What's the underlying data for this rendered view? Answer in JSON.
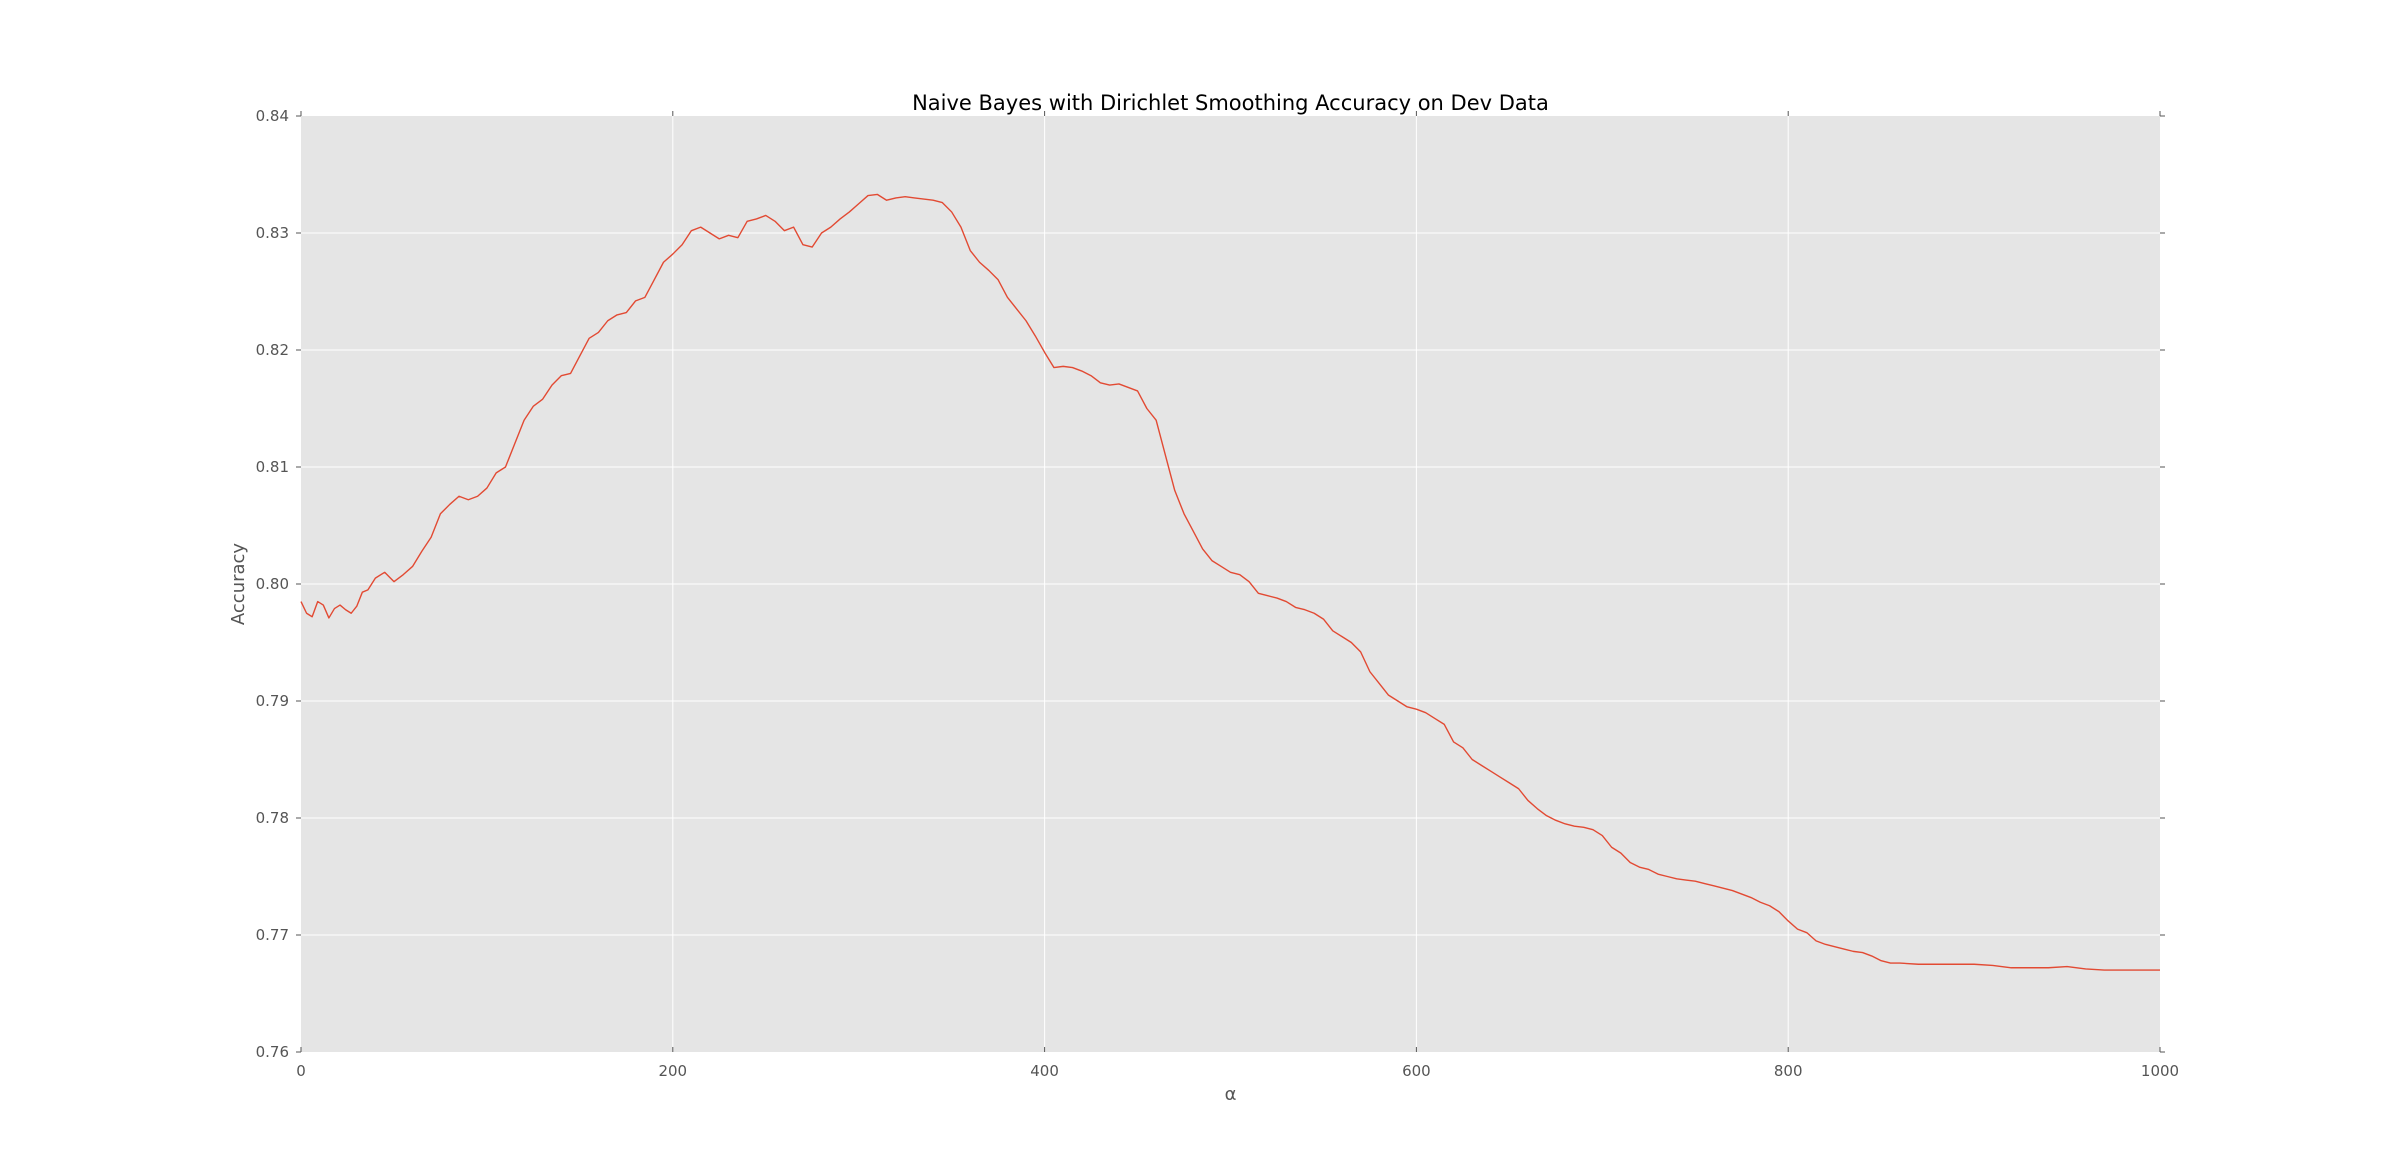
{
  "chart_data": {
    "type": "line",
    "title": "Naive Bayes with Dirichlet Smoothing Accuracy on Dev Data",
    "xlabel": "α",
    "ylabel": "Accuracy",
    "xlim": [
      0,
      1000
    ],
    "ylim": [
      0.76,
      0.84
    ],
    "xticks": [
      0,
      200,
      400,
      600,
      800,
      1000
    ],
    "xtick_labels": [
      "0",
      "200",
      "400",
      "600",
      "800",
      "1000"
    ],
    "yticks": [
      0.76,
      0.77,
      0.78,
      0.79,
      0.8,
      0.81,
      0.82,
      0.83,
      0.84
    ],
    "ytick_labels": [
      "0.76",
      "0.77",
      "0.78",
      "0.79",
      "0.80",
      "0.81",
      "0.82",
      "0.83",
      "0.84"
    ],
    "grid": true,
    "legend": "none",
    "style": {
      "background_color": "#e5e5e5",
      "grid_color": "#ffffff",
      "line_color": "#e24a33"
    },
    "series": [
      {
        "x": [
          0,
          3,
          6,
          9,
          12,
          15,
          18,
          21,
          24,
          27,
          30,
          33,
          36,
          40,
          45,
          50,
          55,
          60,
          65,
          70,
          75,
          80,
          85,
          90,
          95,
          100,
          105,
          110,
          115,
          120,
          125,
          130,
          135,
          140,
          145,
          150,
          155,
          160,
          165,
          170,
          175,
          180,
          185,
          190,
          195,
          200,
          205,
          210,
          215,
          220,
          225,
          230,
          235,
          240,
          245,
          250,
          255,
          260,
          265,
          270,
          275,
          280,
          285,
          290,
          295,
          300,
          305,
          310,
          315,
          320,
          325,
          330,
          335,
          340,
          345,
          350,
          355,
          360,
          365,
          370,
          375,
          380,
          385,
          390,
          395,
          400,
          405,
          410,
          415,
          420,
          425,
          430,
          435,
          440,
          445,
          450,
          455,
          460,
          465,
          470,
          475,
          480,
          485,
          490,
          495,
          500,
          505,
          510,
          515,
          520,
          525,
          530,
          535,
          540,
          545,
          550,
          555,
          560,
          565,
          570,
          575,
          580,
          585,
          590,
          595,
          600,
          605,
          610,
          615,
          620,
          625,
          630,
          635,
          640,
          645,
          650,
          655,
          660,
          665,
          670,
          675,
          680,
          685,
          690,
          695,
          700,
          705,
          710,
          715,
          720,
          725,
          730,
          735,
          740,
          745,
          750,
          755,
          760,
          765,
          770,
          775,
          780,
          785,
          790,
          795,
          800,
          805,
          810,
          815,
          820,
          825,
          830,
          835,
          840,
          845,
          850,
          855,
          860,
          870,
          880,
          890,
          900,
          910,
          920,
          930,
          940,
          950,
          960,
          970,
          980,
          990,
          1000
        ],
        "y": [
          0.7985,
          0.7975,
          0.7972,
          0.7985,
          0.7982,
          0.7971,
          0.7979,
          0.7982,
          0.7978,
          0.7975,
          0.7981,
          0.7993,
          0.7995,
          0.8005,
          0.801,
          0.8002,
          0.8008,
          0.8015,
          0.8028,
          0.804,
          0.806,
          0.8068,
          0.8075,
          0.8072,
          0.8075,
          0.8082,
          0.8095,
          0.81,
          0.812,
          0.814,
          0.8152,
          0.8158,
          0.817,
          0.8178,
          0.818,
          0.8195,
          0.821,
          0.8215,
          0.8225,
          0.823,
          0.8232,
          0.8242,
          0.8245,
          0.826,
          0.8275,
          0.8282,
          0.829,
          0.8302,
          0.8305,
          0.83,
          0.8295,
          0.8298,
          0.8296,
          0.831,
          0.8312,
          0.8315,
          0.831,
          0.8302,
          0.8305,
          0.829,
          0.8288,
          0.83,
          0.8305,
          0.8312,
          0.8318,
          0.8325,
          0.8332,
          0.8333,
          0.8328,
          0.833,
          0.8331,
          0.833,
          0.8329,
          0.8328,
          0.8326,
          0.8318,
          0.8305,
          0.8285,
          0.8275,
          0.8268,
          0.826,
          0.8245,
          0.8235,
          0.8225,
          0.8212,
          0.8198,
          0.8185,
          0.8186,
          0.8185,
          0.8182,
          0.8178,
          0.8172,
          0.817,
          0.8171,
          0.8168,
          0.8165,
          0.815,
          0.814,
          0.811,
          0.808,
          0.806,
          0.8045,
          0.803,
          0.802,
          0.8015,
          0.801,
          0.8008,
          0.8002,
          0.7992,
          0.799,
          0.7988,
          0.7985,
          0.798,
          0.7978,
          0.7975,
          0.797,
          0.796,
          0.7955,
          0.795,
          0.7942,
          0.7925,
          0.7915,
          0.7905,
          0.79,
          0.7895,
          0.7893,
          0.789,
          0.7885,
          0.788,
          0.7865,
          0.786,
          0.785,
          0.7845,
          0.784,
          0.7835,
          0.783,
          0.7825,
          0.7815,
          0.7808,
          0.7802,
          0.7798,
          0.7795,
          0.7793,
          0.7792,
          0.779,
          0.7785,
          0.7775,
          0.777,
          0.7762,
          0.7758,
          0.7756,
          0.7752,
          0.775,
          0.7748,
          0.7747,
          0.7746,
          0.7744,
          0.7742,
          0.774,
          0.7738,
          0.7735,
          0.7732,
          0.7728,
          0.7725,
          0.772,
          0.7712,
          0.7705,
          0.7702,
          0.7695,
          0.7692,
          0.769,
          0.7688,
          0.7686,
          0.7685,
          0.7682,
          0.7678,
          0.7676,
          0.7676,
          0.7675,
          0.7675,
          0.7675,
          0.7675,
          0.7674,
          0.7672,
          0.7672,
          0.7672,
          0.7673,
          0.7671,
          0.767,
          0.767,
          0.767,
          0.767
        ]
      }
    ]
  }
}
